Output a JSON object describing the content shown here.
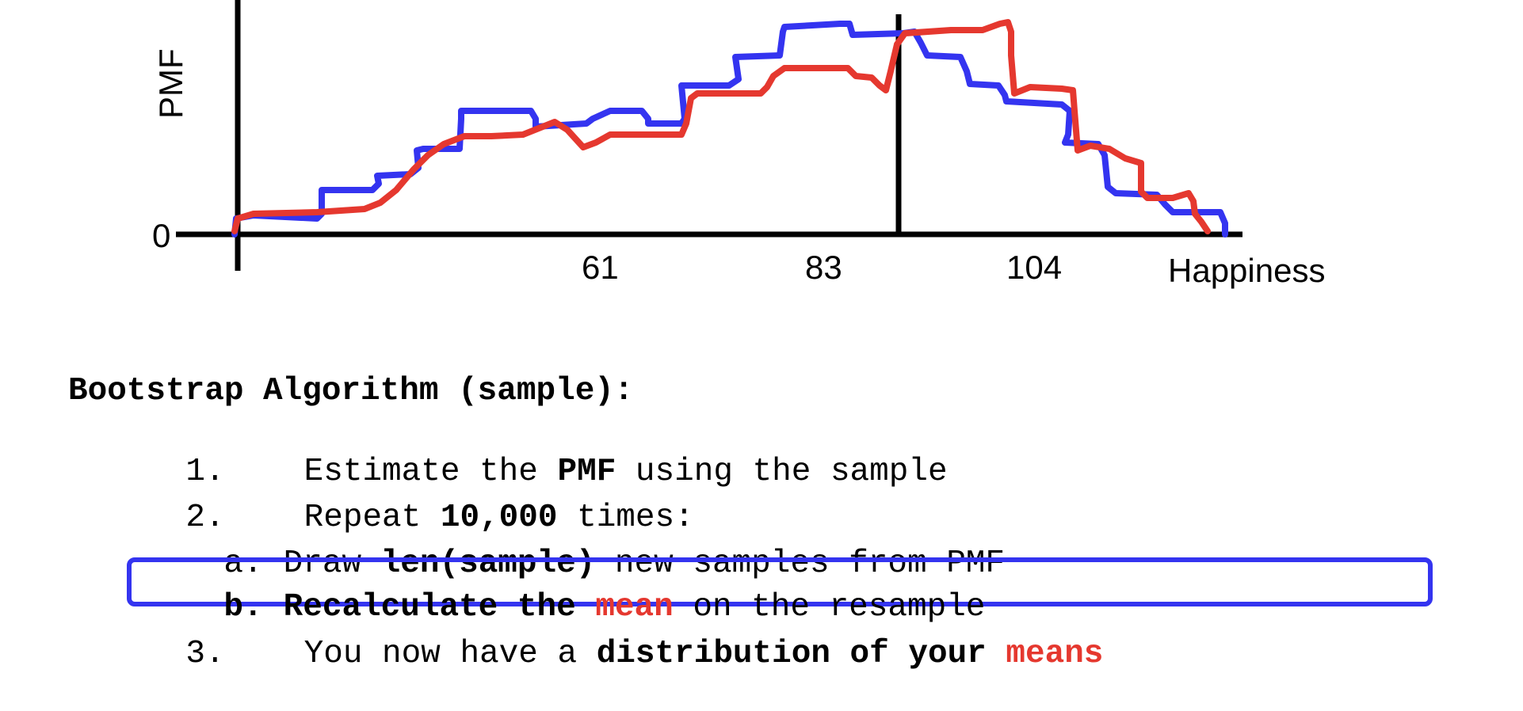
{
  "chart": {
    "y_label": "PMF",
    "y_zero_label": "0",
    "x_label": "Happiness",
    "x_ticks": [
      "61",
      "83",
      "104"
    ],
    "series_colors": {
      "blue": "#3434f0",
      "red": "#e5382f"
    }
  },
  "algorithm": {
    "title": "Bootstrap Algorithm (sample):",
    "step1": {
      "num": "1.",
      "pre": "Estimate the ",
      "bold": "PMF",
      "post": " using the sample"
    },
    "step2": {
      "num": "2.",
      "pre": "Repeat ",
      "bold": "10,000",
      "post": " times:"
    },
    "step2a": {
      "num": "a.",
      "pre": "Draw ",
      "bold": "len(sample)",
      "post": " new samples from PMF"
    },
    "step2b": {
      "num": "b.",
      "bold1": "Recalculate the ",
      "red": "mean",
      "post": " on the resample"
    },
    "step3": {
      "num": "3.",
      "pre": "You now have a ",
      "bold": "distribution of your ",
      "red": "means"
    },
    "highlight_color": "#3434f0",
    "emphasis_color": "#e5382f"
  }
}
